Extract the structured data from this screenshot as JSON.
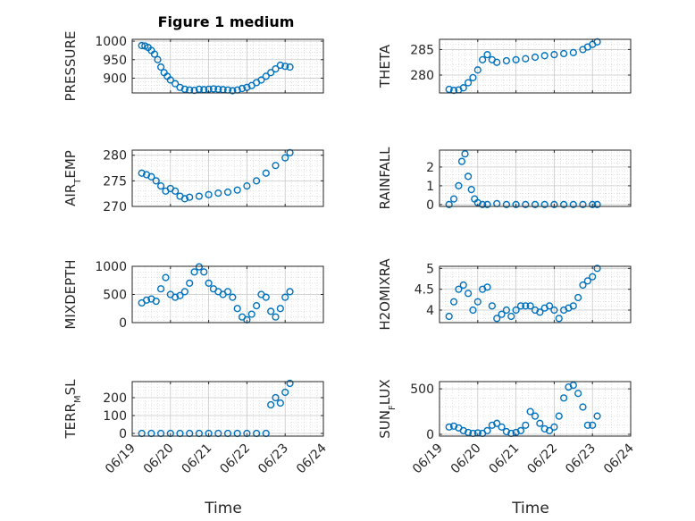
{
  "figure": {
    "title": "Figure 1 medium",
    "xlabel": "Time",
    "marker_color": "#0072BD"
  },
  "chart_data": [
    {
      "type": "scatter",
      "ylabel": "PRESSURE",
      "ylabel_parts": [
        {
          "t": "PRESSURE"
        }
      ],
      "ylim": [
        860,
        1005
      ],
      "yticks": [
        900,
        950,
        1000
      ],
      "ytick_labels": [
        "900",
        "950",
        "1000"
      ],
      "grid": true,
      "x": [
        "06/19 06:00",
        "06/19 08:00",
        "06/19 10:00",
        "06/19 12:00",
        "06/19 14:00",
        "06/19 16:00",
        "06/19 18:00",
        "06/19 20:00",
        "06/19 22:00",
        "06/20 00:00",
        "06/20 03:00",
        "06/20 06:00",
        "06/20 09:00",
        "06/20 12:00",
        "06/20 15:00",
        "06/20 18:00",
        "06/20 21:00",
        "06/21 00:00",
        "06/21 03:00",
        "06/21 06:00",
        "06/21 09:00",
        "06/21 12:00",
        "06/21 15:00",
        "06/21 18:00",
        "06/21 21:00",
        "06/22 00:00",
        "06/22 03:00",
        "06/22 06:00",
        "06/22 09:00",
        "06/22 12:00",
        "06/22 15:00",
        "06/22 18:00",
        "06/22 21:00",
        "06/23 00:00",
        "06/23 03:00"
      ],
      "y": [
        988,
        987,
        983,
        975,
        965,
        950,
        930,
        915,
        905,
        895,
        885,
        875,
        870,
        868,
        867,
        870,
        869,
        870,
        871,
        870,
        869,
        868,
        866,
        868,
        872,
        875,
        880,
        888,
        895,
        905,
        915,
        925,
        935,
        932,
        930
      ]
    },
    {
      "type": "scatter",
      "ylabel": "THETA",
      "ylabel_parts": [
        {
          "t": "THETA"
        }
      ],
      "ylim": [
        276.5,
        287
      ],
      "yticks": [
        280,
        285
      ],
      "ytick_labels": [
        "280",
        "285"
      ],
      "grid": true,
      "x": [
        "06/19 06:00",
        "06/19 09:00",
        "06/19 12:00",
        "06/19 15:00",
        "06/19 18:00",
        "06/19 21:00",
        "06/20 00:00",
        "06/20 03:00",
        "06/20 06:00",
        "06/20 09:00",
        "06/20 12:00",
        "06/20 18:00",
        "06/21 00:00",
        "06/21 06:00",
        "06/21 12:00",
        "06/21 18:00",
        "06/22 00:00",
        "06/22 06:00",
        "06/22 12:00",
        "06/22 18:00",
        "06/22 21:00",
        "06/23 00:00",
        "06/23 03:00"
      ],
      "y": [
        277.2,
        277.0,
        277.1,
        277.5,
        278.5,
        279.5,
        281.0,
        283.0,
        284.0,
        283.0,
        282.5,
        282.8,
        283.0,
        283.2,
        283.5,
        283.8,
        284.0,
        284.2,
        284.4,
        285.0,
        285.5,
        286.0,
        286.5
      ]
    },
    {
      "type": "scatter",
      "ylabel": "AIR_TEMP",
      "ylabel_parts": [
        {
          "t": "AIR"
        },
        {
          "t": "T",
          "sub": true
        },
        {
          "t": "EMP"
        }
      ],
      "ylim": [
        270,
        281
      ],
      "yticks": [
        270,
        275,
        280
      ],
      "ytick_labels": [
        "270",
        "275",
        "280"
      ],
      "grid": true,
      "x": [
        "06/19 06:00",
        "06/19 09:00",
        "06/19 12:00",
        "06/19 15:00",
        "06/19 18:00",
        "06/19 21:00",
        "06/20 00:00",
        "06/20 03:00",
        "06/20 06:00",
        "06/20 09:00",
        "06/20 12:00",
        "06/20 18:00",
        "06/21 00:00",
        "06/21 06:00",
        "06/21 12:00",
        "06/21 18:00",
        "06/22 00:00",
        "06/22 06:00",
        "06/22 12:00",
        "06/22 18:00",
        "06/23 00:00",
        "06/23 03:00"
      ],
      "y": [
        276.5,
        276.2,
        275.8,
        275.0,
        274.0,
        273.0,
        273.5,
        273.0,
        272.0,
        271.5,
        271.8,
        272.0,
        272.3,
        272.6,
        272.8,
        273.2,
        274.0,
        275.0,
        276.5,
        278.0,
        279.5,
        280.5
      ]
    },
    {
      "type": "scatter",
      "ylabel": "RAINFALL",
      "ylabel_parts": [
        {
          "t": "RAINFALL"
        }
      ],
      "ylim": [
        -0.1,
        2.9
      ],
      "yticks": [
        0,
        1,
        2
      ],
      "ytick_labels": [
        "0",
        "1",
        "2"
      ],
      "grid": true,
      "x": [
        "06/19 06:00",
        "06/19 09:00",
        "06/19 12:00",
        "06/19 14:00",
        "06/19 16:00",
        "06/19 18:00",
        "06/19 20:00",
        "06/19 22:00",
        "06/20 00:00",
        "06/20 03:00",
        "06/20 06:00",
        "06/20 12:00",
        "06/20 18:00",
        "06/21 00:00",
        "06/21 06:00",
        "06/21 12:00",
        "06/21 18:00",
        "06/22 00:00",
        "06/22 06:00",
        "06/22 12:00",
        "06/22 18:00",
        "06/23 00:00",
        "06/23 03:00"
      ],
      "y": [
        0,
        0.3,
        1.0,
        2.3,
        2.7,
        1.5,
        0.8,
        0.3,
        0.1,
        0,
        0,
        0.05,
        0,
        0,
        0,
        0,
        0,
        0,
        0,
        0,
        0,
        0,
        0
      ]
    },
    {
      "type": "scatter",
      "ylabel": "MIXDEPTH",
      "ylabel_parts": [
        {
          "t": "MIXDEPTH"
        }
      ],
      "ylim": [
        0,
        1000
      ],
      "yticks": [
        0,
        500,
        1000
      ],
      "ytick_labels": [
        "0",
        "500",
        "1000"
      ],
      "grid": true,
      "x": [
        "06/19 06:00",
        "06/19 09:00",
        "06/19 12:00",
        "06/19 15:00",
        "06/19 18:00",
        "06/19 21:00",
        "06/20 00:00",
        "06/20 03:00",
        "06/20 06:00",
        "06/20 09:00",
        "06/20 12:00",
        "06/20 15:00",
        "06/20 18:00",
        "06/20 21:00",
        "06/21 00:00",
        "06/21 03:00",
        "06/21 06:00",
        "06/21 09:00",
        "06/21 12:00",
        "06/21 15:00",
        "06/21 18:00",
        "06/21 21:00",
        "06/22 00:00",
        "06/22 03:00",
        "06/22 06:00",
        "06/22 09:00",
        "06/22 12:00",
        "06/22 15:00",
        "06/22 18:00",
        "06/22 21:00",
        "06/23 00:00",
        "06/23 03:00"
      ],
      "y": [
        350,
        400,
        420,
        380,
        600,
        800,
        500,
        450,
        480,
        550,
        700,
        900,
        990,
        900,
        700,
        600,
        550,
        500,
        550,
        450,
        250,
        100,
        50,
        150,
        300,
        500,
        450,
        200,
        100,
        250,
        450,
        550
      ]
    },
    {
      "type": "scatter",
      "ylabel": "H2OMIXRA",
      "ylabel_parts": [
        {
          "t": "H2OMIXRA"
        }
      ],
      "ylim": [
        3.7,
        5.05
      ],
      "yticks": [
        4,
        4.5,
        5
      ],
      "ytick_labels": [
        "4",
        "4.5",
        "5"
      ],
      "grid": true,
      "x": [
        "06/19 06:00",
        "06/19 09:00",
        "06/19 12:00",
        "06/19 15:00",
        "06/19 18:00",
        "06/19 21:00",
        "06/20 00:00",
        "06/20 03:00",
        "06/20 06:00",
        "06/20 09:00",
        "06/20 12:00",
        "06/20 15:00",
        "06/20 18:00",
        "06/20 21:00",
        "06/21 00:00",
        "06/21 03:00",
        "06/21 06:00",
        "06/21 09:00",
        "06/21 12:00",
        "06/21 15:00",
        "06/21 18:00",
        "06/21 21:00",
        "06/22 00:00",
        "06/22 03:00",
        "06/22 06:00",
        "06/22 09:00",
        "06/22 12:00",
        "06/22 15:00",
        "06/22 18:00",
        "06/22 21:00",
        "06/23 00:00",
        "06/23 03:00"
      ],
      "y": [
        3.85,
        4.2,
        4.5,
        4.6,
        4.4,
        4.0,
        4.2,
        4.5,
        4.55,
        4.1,
        3.8,
        3.9,
        4.0,
        3.85,
        4.0,
        4.1,
        4.1,
        4.1,
        4.0,
        3.95,
        4.05,
        4.1,
        4.0,
        3.8,
        4.0,
        4.05,
        4.1,
        4.3,
        4.6,
        4.7,
        4.8,
        5.0
      ]
    },
    {
      "type": "scatter",
      "ylabel": "TERR_MSL",
      "ylabel_parts": [
        {
          "t": "TERR"
        },
        {
          "t": "M",
          "sub": true
        },
        {
          "t": "SL"
        }
      ],
      "ylim": [
        -15,
        290
      ],
      "yticks": [
        0,
        100,
        200
      ],
      "ytick_labels": [
        "0",
        "100",
        "200"
      ],
      "grid": true,
      "x": [
        "06/19 06:00",
        "06/19 12:00",
        "06/19 18:00",
        "06/20 00:00",
        "06/20 06:00",
        "06/20 12:00",
        "06/20 18:00",
        "06/21 00:00",
        "06/21 06:00",
        "06/21 12:00",
        "06/21 18:00",
        "06/22 00:00",
        "06/22 06:00",
        "06/22 12:00",
        "06/22 15:00",
        "06/22 18:00",
        "06/22 21:00",
        "06/23 00:00",
        "06/23 03:00"
      ],
      "y": [
        0,
        0,
        0,
        0,
        0,
        0,
        0,
        0,
        0,
        0,
        0,
        0,
        0,
        0,
        160,
        200,
        170,
        230,
        280
      ]
    },
    {
      "type": "scatter",
      "ylabel": "SUN_FLUX",
      "ylabel_parts": [
        {
          "t": "SUN"
        },
        {
          "t": "F",
          "sub": true
        },
        {
          "t": "LUX"
        }
      ],
      "ylim": [
        -20,
        580
      ],
      "yticks": [
        0,
        500
      ],
      "ytick_labels": [
        "0",
        "500"
      ],
      "grid": true,
      "x": [
        "06/19 06:00",
        "06/19 09:00",
        "06/19 12:00",
        "06/19 15:00",
        "06/19 18:00",
        "06/19 21:00",
        "06/20 00:00",
        "06/20 03:00",
        "06/20 06:00",
        "06/20 09:00",
        "06/20 12:00",
        "06/20 15:00",
        "06/20 18:00",
        "06/20 21:00",
        "06/21 00:00",
        "06/21 03:00",
        "06/21 06:00",
        "06/21 09:00",
        "06/21 12:00",
        "06/21 15:00",
        "06/21 18:00",
        "06/21 21:00",
        "06/22 00:00",
        "06/22 03:00",
        "06/22 06:00",
        "06/22 09:00",
        "06/22 12:00",
        "06/22 15:00",
        "06/22 18:00",
        "06/22 21:00",
        "06/23 00:00",
        "06/23 03:00"
      ],
      "y": [
        80,
        90,
        70,
        40,
        20,
        10,
        15,
        10,
        40,
        100,
        120,
        80,
        30,
        10,
        20,
        40,
        100,
        250,
        200,
        120,
        60,
        40,
        80,
        200,
        400,
        520,
        540,
        450,
        300,
        100,
        100,
        200
      ]
    }
  ],
  "x_axis": {
    "ticks": [
      "06/19",
      "06/20",
      "06/21",
      "06/22",
      "06/23",
      "06/24"
    ],
    "range": [
      "06/19",
      "06/24"
    ]
  }
}
